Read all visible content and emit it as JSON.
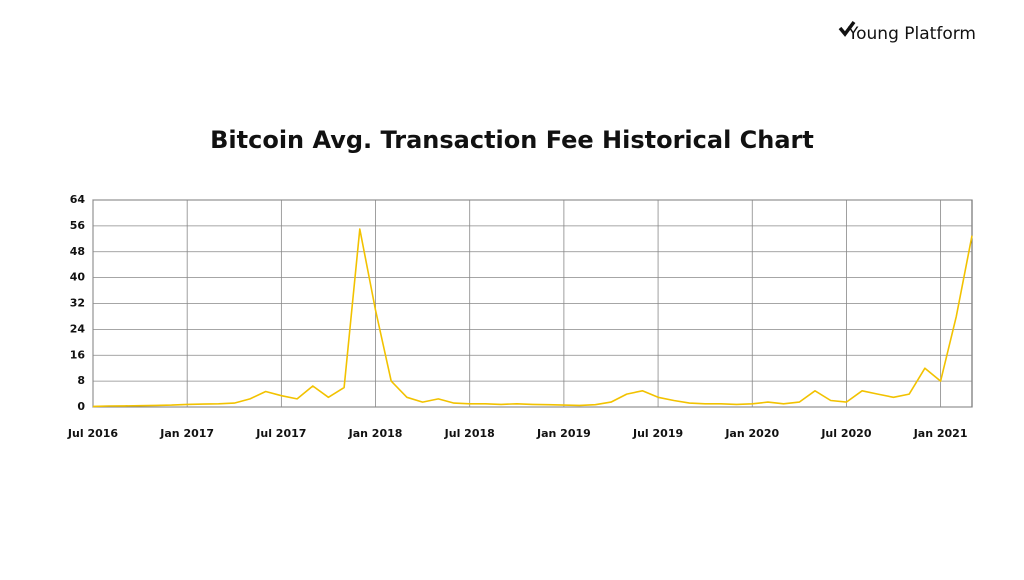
{
  "brand": "Young Platform",
  "chart_data": {
    "type": "line",
    "title": "Bitcoin Avg. Transaction Fee Historical Chart",
    "x": [
      "2016-07",
      "2016-08",
      "2016-09",
      "2016-10",
      "2016-11",
      "2016-12",
      "2017-01",
      "2017-02",
      "2017-03",
      "2017-04",
      "2017-05",
      "2017-06",
      "2017-07",
      "2017-08",
      "2017-09",
      "2017-10",
      "2017-11",
      "2017-12",
      "2018-01",
      "2018-02",
      "2018-03",
      "2018-04",
      "2018-05",
      "2018-06",
      "2018-07",
      "2018-08",
      "2018-09",
      "2018-10",
      "2018-11",
      "2018-12",
      "2019-01",
      "2019-02",
      "2019-03",
      "2019-04",
      "2019-05",
      "2019-06",
      "2019-07",
      "2019-08",
      "2019-09",
      "2019-10",
      "2019-11",
      "2019-12",
      "2020-01",
      "2020-02",
      "2020-03",
      "2020-04",
      "2020-05",
      "2020-06",
      "2020-07",
      "2020-08",
      "2020-09",
      "2020-10",
      "2020-11",
      "2020-12",
      "2021-01",
      "2021-02",
      "2021-03"
    ],
    "series": [
      {
        "color": "#f2c200",
        "values": [
          0.2,
          0.3,
          0.35,
          0.4,
          0.5,
          0.6,
          0.8,
          0.9,
          1.0,
          1.2,
          2.5,
          4.8,
          3.5,
          2.5,
          6.5,
          3,
          6,
          55,
          30,
          8,
          3,
          1.5,
          2.5,
          1.2,
          1,
          1,
          0.8,
          1,
          0.8,
          0.7,
          0.6,
          0.5,
          0.7,
          1.5,
          4,
          5,
          3,
          2,
          1.2,
          1,
          1,
          0.8,
          1,
          1.5,
          1,
          1.5,
          5,
          2,
          1.5,
          5,
          4,
          3,
          4,
          12,
          8,
          28,
          53
        ]
      }
    ],
    "xlim": [
      "2016-07",
      "2021-03"
    ],
    "xticks": [
      {
        "value": "2016-07",
        "label": "Jul 2016"
      },
      {
        "value": "2017-01",
        "label": "Jan 2017"
      },
      {
        "value": "2017-07",
        "label": "Jul 2017"
      },
      {
        "value": "2018-01",
        "label": "Jan 2018"
      },
      {
        "value": "2018-07",
        "label": "Jul 2018"
      },
      {
        "value": "2019-01",
        "label": "Jan 2019"
      },
      {
        "value": "2019-07",
        "label": "Jul 2019"
      },
      {
        "value": "2020-01",
        "label": "Jan 2020"
      },
      {
        "value": "2020-07",
        "label": "Jul 2020"
      },
      {
        "value": "2021-01",
        "label": "Jan 2021"
      }
    ],
    "ylim": [
      0,
      64
    ],
    "yticks": [
      0,
      8,
      16,
      24,
      32,
      40,
      48,
      56,
      64
    ],
    "grid": true
  }
}
